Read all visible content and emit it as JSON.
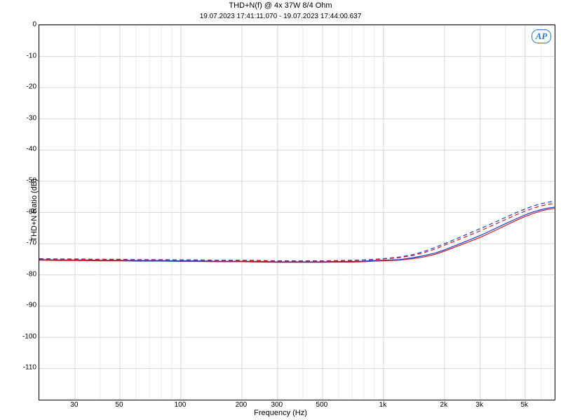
{
  "chart": {
    "type": "line",
    "title": "THD+N(f) @ 4x 37W 8/4 Ohm",
    "subtitle": "19.07.2023 17:41:11.070 - 19.07.2023 17:44:00.637",
    "xlabel": "Frequency (Hz)",
    "ylabel": "THD+N Ratio (dB)",
    "logo_text": "AP",
    "background_color": "#ffffff",
    "plot_bg_color": "#fdfdfd",
    "grid_color": "#d8d8d8",
    "grid_color_minor": "#ececec",
    "border_color": "#000000",
    "x_scale": "log",
    "x_min": 20,
    "x_max": 7000,
    "x_ticks_major": [
      30,
      50,
      100,
      200,
      300,
      500,
      1000,
      2000,
      3000,
      5000
    ],
    "x_tick_labels": [
      "30",
      "50",
      "100",
      "200",
      "300",
      "500",
      "1k",
      "2k",
      "3k",
      "5k"
    ],
    "x_gridlines": [
      20,
      30,
      40,
      50,
      60,
      70,
      80,
      90,
      100,
      200,
      300,
      400,
      500,
      600,
      700,
      800,
      900,
      1000,
      2000,
      3000,
      4000,
      5000,
      6000,
      7000
    ],
    "y_scale": "linear",
    "y_min": -120,
    "y_max": 0,
    "y_ticks": [
      0,
      -10,
      -20,
      -30,
      -40,
      -50,
      -60,
      -70,
      -80,
      -90,
      -100,
      -110
    ],
    "title_fontsize": 11,
    "subtitle_fontsize": 10,
    "label_fontsize": 11,
    "tick_fontsize": 10,
    "series": [
      {
        "name": "red-solid",
        "color": "#c62032",
        "dash": "none",
        "width": 1.2,
        "points": [
          [
            20,
            -75.3
          ],
          [
            25,
            -75.4
          ],
          [
            30,
            -75.4
          ],
          [
            40,
            -75.5
          ],
          [
            50,
            -75.5
          ],
          [
            60,
            -75.6
          ],
          [
            80,
            -75.6
          ],
          [
            100,
            -75.7
          ],
          [
            120,
            -75.7
          ],
          [
            150,
            -75.8
          ],
          [
            200,
            -75.8
          ],
          [
            250,
            -75.9
          ],
          [
            300,
            -76.0
          ],
          [
            400,
            -76.0
          ],
          [
            500,
            -76.0
          ],
          [
            600,
            -75.9
          ],
          [
            700,
            -75.9
          ],
          [
            800,
            -75.8
          ],
          [
            900,
            -75.6
          ],
          [
            1000,
            -75.5
          ],
          [
            1200,
            -75.3
          ],
          [
            1400,
            -74.8
          ],
          [
            1600,
            -74.2
          ],
          [
            1800,
            -73.4
          ],
          [
            2000,
            -72.4
          ],
          [
            2500,
            -70.0
          ],
          [
            3000,
            -68.0
          ],
          [
            3500,
            -66.0
          ],
          [
            4000,
            -64.2
          ],
          [
            4500,
            -62.6
          ],
          [
            5000,
            -61.3
          ],
          [
            5500,
            -60.3
          ],
          [
            6000,
            -59.5
          ],
          [
            6500,
            -59.0
          ],
          [
            7000,
            -58.7
          ]
        ]
      },
      {
        "name": "blue-solid",
        "color": "#2040c6",
        "dash": "none",
        "width": 1.2,
        "points": [
          [
            20,
            -75.1
          ],
          [
            25,
            -75.2
          ],
          [
            30,
            -75.2
          ],
          [
            40,
            -75.3
          ],
          [
            50,
            -75.3
          ],
          [
            60,
            -75.4
          ],
          [
            80,
            -75.4
          ],
          [
            100,
            -75.5
          ],
          [
            120,
            -75.5
          ],
          [
            150,
            -75.6
          ],
          [
            200,
            -75.6
          ],
          [
            250,
            -75.7
          ],
          [
            300,
            -75.8
          ],
          [
            400,
            -75.8
          ],
          [
            500,
            -75.8
          ],
          [
            600,
            -75.7
          ],
          [
            700,
            -75.7
          ],
          [
            800,
            -75.6
          ],
          [
            900,
            -75.4
          ],
          [
            1000,
            -75.3
          ],
          [
            1200,
            -75.1
          ],
          [
            1400,
            -74.5
          ],
          [
            1600,
            -73.8
          ],
          [
            1800,
            -73.0
          ],
          [
            2000,
            -72.0
          ],
          [
            2500,
            -69.5
          ],
          [
            3000,
            -67.4
          ],
          [
            3500,
            -65.4
          ],
          [
            4000,
            -63.6
          ],
          [
            4500,
            -62.1
          ],
          [
            5000,
            -60.8
          ],
          [
            5500,
            -59.8
          ],
          [
            6000,
            -59.1
          ],
          [
            6500,
            -58.6
          ],
          [
            7000,
            -58.3
          ]
        ]
      },
      {
        "name": "blue-dashed",
        "color": "#2040c6",
        "dash": "6,4",
        "width": 1.2,
        "points": [
          [
            20,
            -74.8
          ],
          [
            25,
            -74.9
          ],
          [
            30,
            -74.9
          ],
          [
            40,
            -75.0
          ],
          [
            50,
            -75.0
          ],
          [
            60,
            -75.1
          ],
          [
            80,
            -75.1
          ],
          [
            100,
            -75.2
          ],
          [
            120,
            -75.2
          ],
          [
            150,
            -75.3
          ],
          [
            200,
            -75.3
          ],
          [
            250,
            -75.4
          ],
          [
            300,
            -75.5
          ],
          [
            400,
            -75.5
          ],
          [
            500,
            -75.5
          ],
          [
            600,
            -75.4
          ],
          [
            700,
            -75.3
          ],
          [
            800,
            -75.2
          ],
          [
            900,
            -75.0
          ],
          [
            1000,
            -74.8
          ],
          [
            1200,
            -74.3
          ],
          [
            1400,
            -73.5
          ],
          [
            1600,
            -72.4
          ],
          [
            1800,
            -71.2
          ],
          [
            2000,
            -70.0
          ],
          [
            2500,
            -67.4
          ],
          [
            3000,
            -65.2
          ],
          [
            3500,
            -63.3
          ],
          [
            4000,
            -61.6
          ],
          [
            4500,
            -60.1
          ],
          [
            5000,
            -58.9
          ],
          [
            5500,
            -57.9
          ],
          [
            6000,
            -57.2
          ],
          [
            6500,
            -56.7
          ],
          [
            7000,
            -56.4
          ]
        ]
      },
      {
        "name": "red-dashed",
        "color": "#c62032",
        "dash": "6,4",
        "width": 1.2,
        "points": [
          [
            20,
            -74.9
          ],
          [
            25,
            -75.0
          ],
          [
            30,
            -75.0
          ],
          [
            40,
            -75.1
          ],
          [
            50,
            -75.1
          ],
          [
            60,
            -75.2
          ],
          [
            80,
            -75.2
          ],
          [
            100,
            -75.3
          ],
          [
            120,
            -75.3
          ],
          [
            150,
            -75.4
          ],
          [
            200,
            -75.4
          ],
          [
            250,
            -75.5
          ],
          [
            300,
            -75.6
          ],
          [
            400,
            -75.6
          ],
          [
            500,
            -75.6
          ],
          [
            600,
            -75.5
          ],
          [
            700,
            -75.4
          ],
          [
            800,
            -75.3
          ],
          [
            900,
            -75.1
          ],
          [
            1000,
            -74.9
          ],
          [
            1200,
            -74.5
          ],
          [
            1400,
            -73.8
          ],
          [
            1600,
            -72.8
          ],
          [
            1800,
            -71.7
          ],
          [
            2000,
            -70.5
          ],
          [
            2500,
            -68.0
          ],
          [
            3000,
            -65.9
          ],
          [
            3500,
            -64.0
          ],
          [
            4000,
            -62.3
          ],
          [
            4500,
            -60.8
          ],
          [
            5000,
            -59.6
          ],
          [
            5500,
            -58.6
          ],
          [
            6000,
            -57.9
          ],
          [
            6500,
            -57.4
          ],
          [
            7000,
            -57.1
          ]
        ]
      }
    ]
  }
}
